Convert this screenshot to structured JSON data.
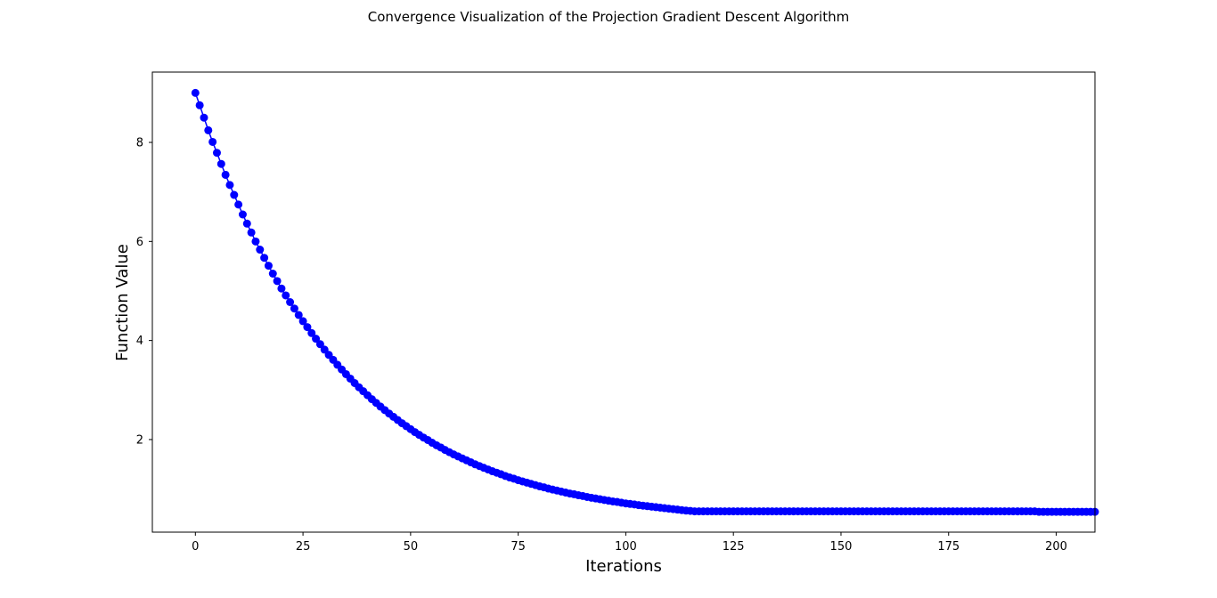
{
  "colors": {
    "series": "#0000ff",
    "axes": "#000000",
    "background": "#ffffff"
  },
  "chart_data": {
    "type": "line",
    "title": "Convergence Visualization of the Projection Gradient Descent Algorithm",
    "xlabel": "Iterations",
    "ylabel": "Function Value",
    "xlim": [
      -10,
      209
    ],
    "ylim": [
      0.13,
      9.42
    ],
    "x_ticks": [
      0,
      25,
      50,
      75,
      100,
      125,
      150,
      175,
      200
    ],
    "y_ticks": [
      2,
      4,
      6,
      8
    ],
    "grid": false,
    "marker": "circle",
    "series": [
      {
        "x_start": 0,
        "x_step": 1,
        "values": [
          9.0,
          8.75,
          8.5,
          8.245,
          8.01,
          7.79,
          7.565,
          7.345,
          7.14,
          6.94,
          6.745,
          6.545,
          6.36,
          6.18,
          6.0,
          5.835,
          5.67,
          5.51,
          5.35,
          5.2,
          5.05,
          4.91,
          4.775,
          4.645,
          4.515,
          4.39,
          4.27,
          4.15,
          4.035,
          3.925,
          3.815,
          3.71,
          3.61,
          3.51,
          3.415,
          3.32,
          3.23,
          3.14,
          3.055,
          2.975,
          2.895,
          2.815,
          2.74,
          2.665,
          2.595,
          2.525,
          2.46,
          2.395,
          2.33,
          2.27,
          2.21,
          2.15,
          2.095,
          2.04,
          1.99,
          1.935,
          1.885,
          1.84,
          1.79,
          1.745,
          1.7,
          1.66,
          1.62,
          1.58,
          1.54,
          1.5,
          1.465,
          1.43,
          1.395,
          1.36,
          1.33,
          1.3,
          1.265,
          1.235,
          1.21,
          1.18,
          1.155,
          1.13,
          1.105,
          1.08,
          1.055,
          1.035,
          1.01,
          0.99,
          0.97,
          0.95,
          0.93,
          0.91,
          0.895,
          0.875,
          0.86,
          0.84,
          0.825,
          0.81,
          0.795,
          0.78,
          0.765,
          0.75,
          0.74,
          0.725,
          0.71,
          0.7,
          0.69,
          0.675,
          0.665,
          0.655,
          0.645,
          0.635,
          0.625,
          0.615,
          0.605,
          0.595,
          0.585,
          0.575,
          0.565,
          0.56,
          0.55,
          0.55,
          0.55,
          0.55,
          0.55,
          0.55,
          0.55,
          0.55,
          0.55,
          0.55,
          0.55,
          0.55,
          0.55,
          0.55,
          0.55,
          0.55,
          0.55,
          0.55,
          0.55,
          0.55,
          0.55,
          0.55,
          0.55,
          0.55,
          0.55,
          0.55,
          0.55,
          0.55,
          0.55,
          0.55,
          0.55,
          0.55,
          0.55,
          0.55,
          0.55,
          0.55,
          0.55,
          0.55,
          0.55,
          0.55,
          0.55,
          0.55,
          0.55,
          0.55,
          0.55,
          0.55,
          0.55,
          0.55,
          0.55,
          0.55,
          0.55,
          0.55,
          0.55,
          0.55,
          0.55,
          0.55,
          0.55,
          0.55,
          0.55,
          0.55,
          0.55,
          0.55,
          0.55,
          0.55,
          0.55,
          0.55,
          0.55,
          0.55,
          0.55,
          0.55,
          0.55,
          0.55,
          0.55,
          0.55,
          0.55,
          0.55,
          0.55,
          0.55,
          0.55,
          0.55,
          0.54,
          0.54,
          0.54,
          0.54,
          0.54,
          0.54,
          0.54,
          0.54,
          0.54,
          0.54,
          0.54,
          0.54,
          0.54,
          0.54
        ]
      }
    ]
  }
}
